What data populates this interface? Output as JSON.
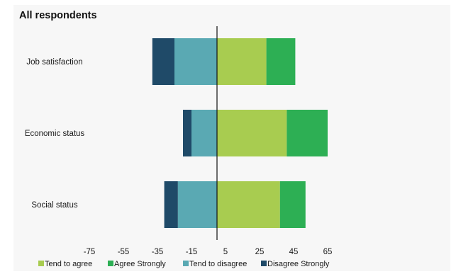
{
  "chart_data": {
    "type": "bar",
    "orientation": "horizontal",
    "stacking": "diverging",
    "title": "All respondents",
    "categories": [
      "Job satisfaction",
      "Economic status",
      "Social status"
    ],
    "series": [
      {
        "name": "Tend to agree",
        "color": "#a8cc50",
        "side": "positive",
        "values": [
          29,
          41,
          37
        ]
      },
      {
        "name": "Agree Strongly",
        "color": "#2daf54",
        "side": "positive",
        "values": [
          17,
          24,
          15
        ]
      },
      {
        "name": "Tend to disagree",
        "color": "#5aa9b3",
        "side": "negative",
        "values": [
          -25,
          -15,
          -23
        ]
      },
      {
        "name": "Disagree Strongly",
        "color": "#1f4a68",
        "side": "negative",
        "values": [
          -13,
          -5,
          -8
        ]
      }
    ],
    "x_ticks": [
      -75,
      -55,
      -35,
      -15,
      5,
      25,
      45,
      65
    ],
    "xlim": [
      -80,
      70
    ],
    "grid": false,
    "legend_position": "bottom"
  }
}
